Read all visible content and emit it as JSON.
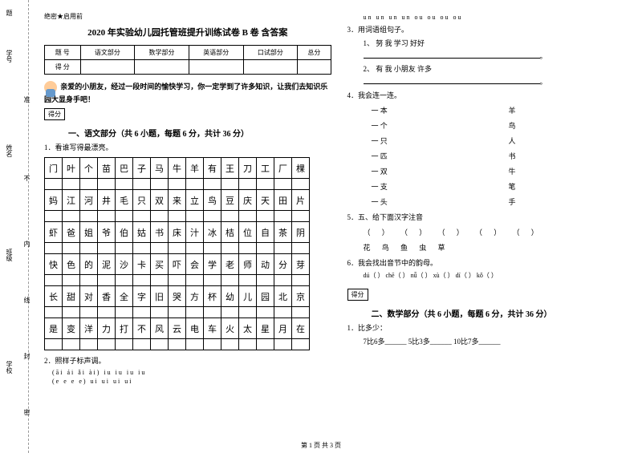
{
  "margin": {
    "labels": [
      "题",
      "学号",
      "准",
      "姓名",
      "不",
      "内",
      "班级",
      "线",
      "封",
      "学校",
      "密"
    ],
    "dash_vert_text": "题答准不内线封密"
  },
  "doc": {
    "secret": "绝密★启用前",
    "title": "2020 年实验幼儿园托管班提升训练试卷 B 卷 含答案",
    "score_table": {
      "headers": [
        "题 号",
        "语文部分",
        "数学部分",
        "英语部分",
        "口试部分",
        "总分"
      ],
      "row_label": "得 分"
    },
    "intro": "亲爱的小朋友，经过一段时间的愉快学习，你一定学到了许多知识，让我们去知识乐园大显身手吧！",
    "score_box": "得分",
    "section1": "一、语文部分（共 6 小题，每题 6 分，共计 36 分）",
    "q1": "1．看谁写得最漂亮。",
    "char_grid": [
      [
        "门",
        "叶",
        "个",
        "苗",
        "巴",
        "子",
        "马",
        "牛",
        "羊",
        "有",
        "王",
        "刀",
        "工",
        "厂",
        "棵"
      ],
      [
        "妈",
        "江",
        "河",
        "井",
        "毛",
        "只",
        "双",
        "来",
        "立",
        "鸟",
        "豆",
        "庆",
        "天",
        "田",
        "片"
      ],
      [
        "虾",
        "爸",
        "姐",
        "爷",
        "伯",
        "姑",
        "书",
        "床",
        "汁",
        "冰",
        "桔",
        "位",
        "自",
        "茶",
        "阴"
      ],
      [
        "快",
        "色",
        "的",
        "泥",
        "沙",
        "卡",
        "买",
        "吓",
        "会",
        "学",
        "老",
        "师",
        "动",
        "分",
        "芽"
      ],
      [
        "长",
        "甜",
        "对",
        "香",
        "全",
        "字",
        "旧",
        "哭",
        "方",
        "杯",
        "幼",
        "儿",
        "园",
        "北",
        "京"
      ],
      [
        "是",
        "变",
        "洋",
        "力",
        "打",
        "不",
        "风",
        "云",
        "电",
        "车",
        "火",
        "太",
        "星",
        "月",
        "在"
      ]
    ],
    "q2": "2．照样子标声调。",
    "q2_rows": [
      "(āi  ái  ǎi  ài)        iu  iu  iu  iu",
      "(e   e   e   e)         ui  ui  ui  ui"
    ],
    "q3_top": "un  un  un  un          ou  ou  ou  ou",
    "q3": "3．用词语组句子。",
    "q3_items": [
      {
        "idx": "1、",
        "words": "努    我    学习      好好"
      },
      {
        "idx": "2、",
        "words": "有    我    小朋友    许多"
      }
    ],
    "q4": "4．我会连一连。",
    "q4_pairs": [
      [
        "一 本",
        "羊"
      ],
      [
        "一 个",
        "鸟"
      ],
      [
        "一 只",
        "人"
      ],
      [
        "一 匹",
        "书"
      ],
      [
        "一 双",
        "牛"
      ],
      [
        "一 支",
        "笔"
      ],
      [
        "一 头",
        "手"
      ]
    ],
    "q5": "5．五、给下面汉字注音",
    "q5_blanks": "（   ） （   ） （   ） （   ） （   ）",
    "q5_chars": "花        鸟        鱼        虫        草",
    "q6": "6．我会找出音节中的韵母。",
    "q6_items": "dú（    ）    chē（    ）    nǚ（    ）    xù（    ）    dí（    ）    kǒ（  ）",
    "section2": "二、数学部分（共 6 小题，每题 6 分，共计 36 分）",
    "mq1": "1．比多少：",
    "mq1_items": "7比6多______        5比3多______        10比7多______",
    "footer": "第 1 页 共 3 页"
  },
  "colors": {
    "bg": "#ffffff",
    "text": "#000000",
    "dash": "#999999"
  }
}
